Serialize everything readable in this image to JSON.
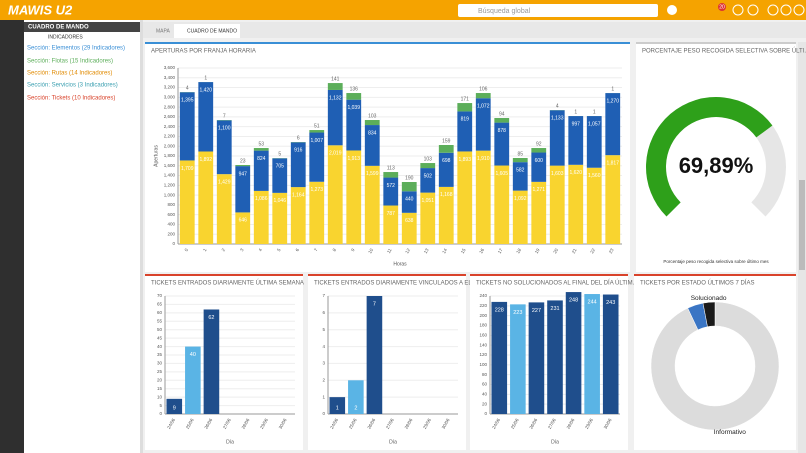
{
  "header": {
    "logo": "MAWIS U2",
    "search_placeholder": "Búsqueda global",
    "notifications": "20"
  },
  "sidebar": {
    "title": "CUADRO DE MANDO",
    "subtitle": "INDICADORES",
    "sections": [
      "Sección: Elementos (29 Indicadores)",
      "Sección: Flotas (15 Indicadores)",
      "Sección: Rutas (14 Indicadores)",
      "Sección: Servicios (3 Indicadores)",
      "Sección: Tickets (10 Indicadores)"
    ]
  },
  "tabs": [
    "MAPA",
    "CUADRO DE MANDO"
  ],
  "chart_data": [
    {
      "type": "stacked_bar",
      "title": "APERTURAS POR FRANJA HORARIA",
      "x_label": "Horas",
      "y_label": "Aperturas",
      "categories": [
        "0",
        "1",
        "2",
        "3",
        "4",
        "5",
        "6",
        "7",
        "8",
        "9",
        "10",
        "11",
        "12",
        "13",
        "14",
        "15",
        "16",
        "17",
        "18",
        "19",
        "20",
        "21",
        "22",
        "23"
      ],
      "series": [
        {
          "color": "#f9d42f",
          "values": [
            1709,
            1892,
            1429,
            646,
            1086,
            1046,
            1164,
            1273,
            2019,
            1913,
            1599,
            787,
            638,
            1051,
            1168,
            1893,
            1910,
            1605,
            1092,
            1271,
            1603,
            1620,
            1560,
            1817
          ],
          "value_labels": [
            "1,709",
            "1,892",
            "1,429",
            "646",
            "1,086",
            "1,046",
            "1,164",
            "1,273",
            "2,019",
            "1,913",
            "1,599",
            "787",
            "638",
            "1,051",
            "1,168",
            "1,893",
            "1,910",
            "1,605",
            "1,092",
            "1,271",
            "1,603",
            "1,620",
            "1,560",
            "1,817"
          ]
        },
        {
          "color": "#1f5fb4",
          "values": [
            1395,
            1420,
            1100,
            947,
            824,
            705,
            916,
            1007,
            1132,
            1039,
            834,
            572,
            440,
            502,
            698,
            819,
            1072,
            878,
            582,
            600,
            1133,
            997,
            1057,
            1270
          ],
          "value_labels": [
            "1,395",
            "1,420",
            "1,100",
            "947",
            "824",
            "705",
            "916",
            "1,007",
            "1,132",
            "1,039",
            "834",
            "572",
            "440",
            "502",
            "698",
            "819",
            "1,072",
            "878",
            "582",
            "600",
            "1,133",
            "997",
            "1,057",
            "1,270"
          ]
        },
        {
          "color": "#5cae5a",
          "values": [
            4,
            1,
            7,
            23,
            53,
            5,
            6,
            51,
            141,
            136,
            103,
            113,
            190,
            103,
            159,
            171,
            106,
            94,
            85,
            92,
            4,
            1,
            1,
            1
          ]
        }
      ],
      "ylim": [
        0,
        3600
      ],
      "yticks": [
        0,
        200,
        400,
        600,
        800,
        {
          "value": 1000,
          "label": "1,000"
        },
        {
          "value": 1200,
          "label": "1,200"
        },
        {
          "value": 1400,
          "label": "1,400"
        },
        {
          "value": 1600,
          "label": "1,600"
        },
        {
          "value": 1800,
          "label": "1,800"
        },
        {
          "value": 2000,
          "label": "2,000"
        },
        {
          "value": 2200,
          "label": "2,200"
        },
        {
          "value": 2400,
          "label": "2,400"
        },
        {
          "value": 2600,
          "label": "2,600"
        },
        {
          "value": 2800,
          "label": "2,800"
        },
        {
          "value": 3000,
          "label": "3,000"
        },
        {
          "value": 3200,
          "label": "3,200"
        },
        {
          "value": 3400,
          "label": "3,400"
        },
        {
          "value": 3600,
          "label": "3,600"
        }
      ],
      "grid": true
    },
    {
      "type": "gauge",
      "title": "PORCENTAJE PESO RECOGIDA SELECTIVA SOBRE ÚLTI...",
      "value": 69.89,
      "value_label": "69,89%",
      "ylim": [
        0,
        100
      ],
      "color": "#2ea01a",
      "caption": "Porcentaje peso recogida selectiva sobre último mes"
    },
    {
      "type": "bar",
      "title": "TICKETS ENTRADOS DIARIAMENTE ÚLTIMA SEMANA",
      "x_label": "Día",
      "categories": [
        "24/06",
        "25/06",
        "26/06",
        "27/06",
        "28/06",
        "29/06",
        "30/06"
      ],
      "values": [
        9,
        40,
        62,
        null,
        null,
        null,
        null
      ],
      "colors": [
        "#1f4e8c",
        "#5ab4e5",
        "#1f4e8c",
        "#1f4e8c",
        "#1f4e8c",
        "#1f4e8c",
        "#1f4e8c"
      ],
      "ylim": [
        0,
        70
      ],
      "yticks": [
        0,
        5,
        10,
        15,
        20,
        25,
        30,
        35,
        40,
        45,
        50,
        55,
        60,
        65,
        70
      ],
      "grid": true
    },
    {
      "type": "bar",
      "title": "TICKETS ENTRADOS DIARIAMENTE VINCULADOS A ELE...",
      "x_label": "Día",
      "categories": [
        "24/06",
        "25/06",
        "26/06",
        "27/06",
        "28/06",
        "29/06",
        "30/06"
      ],
      "values": [
        1,
        2,
        7,
        null,
        null,
        null,
        null
      ],
      "colors": [
        "#1f4e8c",
        "#5ab4e5",
        "#1f4e8c",
        "#1f4e8c",
        "#1f4e8c",
        "#1f4e8c",
        "#1f4e8c"
      ],
      "ylim": [
        0,
        7
      ],
      "yticks": [
        0,
        1,
        2,
        3,
        4,
        5,
        6,
        7
      ],
      "grid": true
    },
    {
      "type": "bar",
      "title": "TICKETS NO SOLUCIONADOS AL FINAL DEL DÍA ÚLTIM...",
      "x_label": "Día",
      "categories": [
        "24/06",
        "25/06",
        "26/06",
        "27/06",
        "28/06",
        "29/06",
        "30/06"
      ],
      "values": [
        228,
        223,
        227,
        231,
        248,
        244,
        243
      ],
      "colors": [
        "#1f4e8c",
        "#5ab4e5",
        "#1f4e8c",
        "#1f4e8c",
        "#1f4e8c",
        "#5ab4e5",
        "#1f4e8c"
      ],
      "ylim": [
        0,
        240
      ],
      "yticks": [
        0,
        20,
        40,
        60,
        80,
        100,
        120,
        140,
        160,
        180,
        200,
        220,
        240
      ],
      "grid": true
    },
    {
      "type": "donut",
      "title": "TICKETS POR ESTADO ÚLTIMOS 7 DÍAS",
      "categories": [
        "Informativo",
        null,
        "Solucionado"
      ],
      "values": [
        93,
        4,
        3
      ],
      "colors": [
        "#dcdcdc",
        "#3a75c4",
        "#1a1a1a"
      ]
    }
  ]
}
